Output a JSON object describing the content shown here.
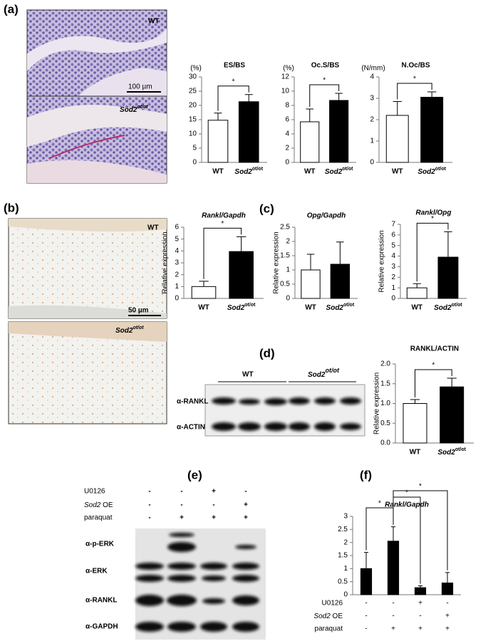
{
  "panel_labels": [
    "(a)",
    "(b)",
    "(c)",
    "(d)",
    "(e)",
    "(f)"
  ],
  "micrographs": {
    "a": {
      "top": "WT",
      "bottom": {
        "text": "Sod2",
        "sup": "ot/ot"
      },
      "scale": "100 µm"
    },
    "b": {
      "top": "WT",
      "bottom": {
        "text": "Sod2",
        "sup": "ot/ot"
      },
      "scale": "50 µm"
    }
  },
  "blot_d": {
    "groups": [
      "WT",
      {
        "text": "Sod2",
        "sup": "ot/ot"
      }
    ],
    "rows": [
      "α-RANKL",
      "α-ACTIN"
    ]
  },
  "blot_e": {
    "conditions": [
      {
        "name": "U0126",
        "marks": [
          "-",
          "-",
          "+",
          "-"
        ]
      },
      {
        "name": {
          "text": "Sod2",
          "suffix": " OE"
        },
        "marks": [
          "-",
          "-",
          "-",
          "+"
        ]
      },
      {
        "name": "paraquat",
        "marks": [
          "-",
          "+",
          "+",
          "+"
        ]
      }
    ],
    "rows": [
      "α-p-ERK",
      "α-ERK",
      "α-RANKL",
      "α-GAPDH"
    ]
  },
  "chart_data": [
    {
      "type": "bar",
      "title": "ES/BS",
      "unit": "(%)",
      "categories": [
        "WT",
        {
          "text": "Sod2",
          "sup": "ot/ot"
        }
      ],
      "values": [
        14.8,
        21.3
      ],
      "errors": [
        2.5,
        2.5
      ],
      "colors": [
        "#ffffff",
        "#000000"
      ],
      "ylim": [
        0,
        30
      ],
      "yticks": [
        0,
        5,
        10,
        15,
        20,
        25,
        30
      ],
      "significance": [
        "*"
      ]
    },
    {
      "type": "bar",
      "title": "Oc.S/BS",
      "unit": "(%)",
      "categories": [
        "WT",
        {
          "text": "Sod2",
          "sup": "ot/ot"
        }
      ],
      "values": [
        5.7,
        8.7
      ],
      "errors": [
        1.8,
        1.0
      ],
      "colors": [
        "#ffffff",
        "#000000"
      ],
      "ylim": [
        0,
        12
      ],
      "yticks": [
        0,
        2,
        4,
        6,
        8,
        10,
        12
      ],
      "significance": [
        "*"
      ]
    },
    {
      "type": "bar",
      "title": "N.Oc/BS",
      "unit": "(N/mm)",
      "categories": [
        "WT",
        {
          "text": "Sod2",
          "sup": "ot/ot"
        }
      ],
      "values": [
        2.2,
        3.05
      ],
      "errors": [
        0.65,
        0.25
      ],
      "colors": [
        "#ffffff",
        "#000000"
      ],
      "ylim": [
        0,
        4
      ],
      "yticks": [
        0,
        1,
        2,
        3,
        4
      ],
      "significance": [
        "*"
      ]
    },
    {
      "type": "bar",
      "title": "Rankl/Gapdh",
      "ylabel": "Relative expression",
      "categories": [
        "WT",
        {
          "text": "Sod2",
          "sup": "ot/ot"
        }
      ],
      "values": [
        1.0,
        3.95
      ],
      "errors": [
        0.45,
        1.25
      ],
      "colors": [
        "#ffffff",
        "#000000"
      ],
      "ylim": [
        0,
        6
      ],
      "yticks": [
        0,
        1,
        2,
        3,
        4,
        5,
        6
      ],
      "significance": [
        "*"
      ]
    },
    {
      "type": "bar",
      "title": "Opg/Gapdh",
      "ylabel": "Relative expression",
      "categories": [
        "WT",
        {
          "text": "Sod2",
          "sup": "ot/ot"
        }
      ],
      "values": [
        1.0,
        1.2
      ],
      "errors": [
        0.55,
        0.78
      ],
      "colors": [
        "#ffffff",
        "#000000"
      ],
      "ylim": [
        0,
        2.5
      ],
      "yticks": [
        0,
        0.5,
        1,
        1.5,
        2,
        2.5
      ],
      "significance": []
    },
    {
      "type": "bar",
      "title": "Rankl/Opg",
      "ylabel": "Relative expression",
      "categories": [
        "WT",
        {
          "text": "Sod2",
          "sup": "ot/ot"
        }
      ],
      "values": [
        1.0,
        3.9
      ],
      "errors": [
        0.4,
        2.4
      ],
      "colors": [
        "#ffffff",
        "#000000"
      ],
      "ylim": [
        0,
        7
      ],
      "yticks": [
        0,
        1,
        2,
        3,
        4,
        5,
        6,
        7
      ],
      "significance": [
        "*"
      ]
    },
    {
      "type": "bar",
      "title": "RANKL/ACTIN",
      "ylabel": "Relative  expression",
      "categories": [
        "WT",
        {
          "text": "Sod2",
          "sup": "ot/ot"
        }
      ],
      "values": [
        1.0,
        1.42
      ],
      "errors": [
        0.1,
        0.22
      ],
      "colors": [
        "#ffffff",
        "#000000"
      ],
      "ylim": [
        0,
        2.0
      ],
      "yticks": [
        {
          "value": 0,
          "label": "0.0"
        },
        {
          "value": 0.5,
          "label": "0.5"
        },
        {
          "value": 1,
          "label": "1.0"
        },
        {
          "value": 1.5,
          "label": "1.5"
        },
        {
          "value": 2,
          "label": "2.0"
        }
      ],
      "significance": [
        "*"
      ]
    },
    {
      "type": "bar",
      "title": "Rankl/Gapdh",
      "categories": [
        null,
        null,
        null,
        null
      ],
      "values": [
        1.0,
        2.05,
        0.27,
        0.45
      ],
      "errors": [
        0.62,
        0.55,
        0.07,
        0.4
      ],
      "colors": [
        "#000000",
        "#000000",
        "#000000",
        "#000000"
      ],
      "ylim": [
        0,
        3
      ],
      "yticks": [
        0,
        0.5,
        1,
        1.5,
        2,
        2.5,
        3
      ],
      "significance": [
        "*",
        "*",
        "*"
      ],
      "conditions": [
        {
          "name": "U0126",
          "marks": [
            "-",
            "-",
            "+",
            "-"
          ]
        },
        {
          "name": {
            "text": "Sod2",
            "suffix": " OE"
          },
          "marks": [
            "-",
            "-",
            "-",
            "+"
          ]
        },
        {
          "name": "paraquat",
          "marks": [
            "-",
            "+",
            "+",
            "+"
          ]
        }
      ]
    }
  ]
}
